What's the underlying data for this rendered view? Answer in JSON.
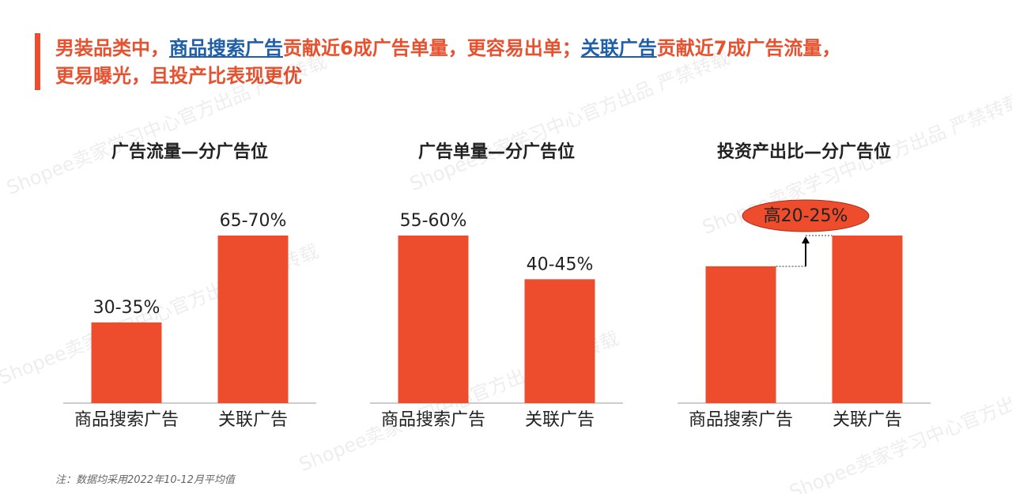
{
  "header": {
    "title_lines": [
      [
        {
          "text": "男装品类中，"
        },
        {
          "text": "商品搜索广告",
          "link": true
        },
        {
          "text": "贡献近6成广告单量，更容易出单；"
        },
        {
          "text": "关联广告",
          "link": true
        },
        {
          "text": "贡献近7成广告流量，"
        }
      ],
      [
        {
          "text": "更易曝光，且投产比表现更优"
        }
      ]
    ]
  },
  "chart_data": [
    {
      "type": "bar",
      "title": "广告流量—分广告位",
      "categories": [
        "商品搜索广告",
        "关联广告"
      ],
      "values": [
        32.5,
        67.5
      ],
      "value_labels": [
        "30-35%",
        "65-70%"
      ],
      "color": "#ee4d2d"
    },
    {
      "type": "bar",
      "title": "广告单量—分广告位",
      "categories": [
        "商品搜索广告",
        "关联广告"
      ],
      "values": [
        57.5,
        42.5
      ],
      "value_labels": [
        "55-60%",
        "40-45%"
      ],
      "color": "#ee4d2d"
    },
    {
      "type": "bar",
      "title": "投资产出比—分广告位",
      "categories": [
        "商品搜索广告",
        "关联广告"
      ],
      "values": [
        100,
        122.5
      ],
      "annotation": "高20-25%",
      "color": "#ee4d2d"
    }
  ],
  "note": "注：数据均采用2022年10-12月平均值",
  "watermark": "Shopee卖家学习中心官方出品 严禁转载"
}
